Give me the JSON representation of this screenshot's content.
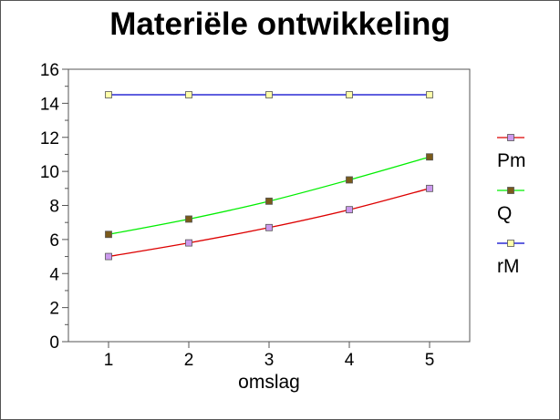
{
  "chart_data": {
    "type": "line",
    "title": "Materiële ontwikkeling",
    "xlabel": "omslag",
    "ylabel": "",
    "x": [
      1,
      2,
      3,
      4,
      5
    ],
    "ylim": [
      0,
      16
    ],
    "yticks": [
      0,
      2,
      4,
      6,
      8,
      10,
      12,
      14,
      16
    ],
    "grid": false,
    "legend_position": "right",
    "series": [
      {
        "name": "Pm",
        "values": [
          5.0,
          5.8,
          6.7,
          7.75,
          9.0
        ],
        "line_color": "#dd0000",
        "marker_color": "#cc99ee"
      },
      {
        "name": "Q",
        "values": [
          6.3,
          7.2,
          8.25,
          9.5,
          10.85
        ],
        "line_color": "#00ee00",
        "marker_color": "#7a5a1a"
      },
      {
        "name": "rM",
        "values": [
          14.5,
          14.5,
          14.5,
          14.5,
          14.5
        ],
        "line_color": "#0000cc",
        "marker_color": "#ffffaa"
      }
    ]
  }
}
